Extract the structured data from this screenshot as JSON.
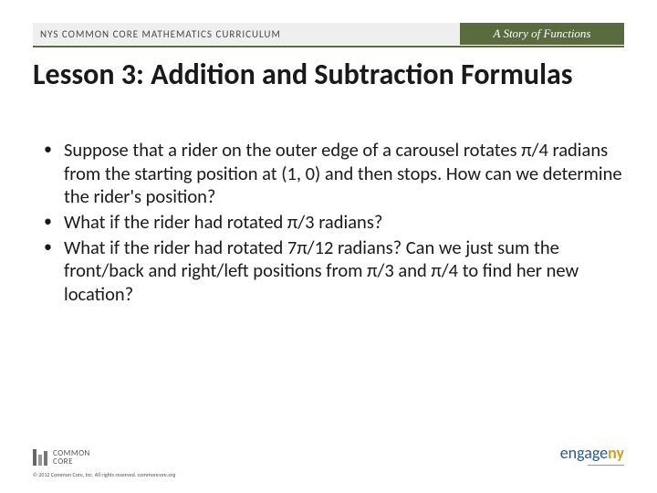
{
  "header": {
    "left": "NYS COMMON CORE MATHEMATICS CURRICULUM",
    "right": "A Story of Functions",
    "bg_left": "#efefef",
    "bg_right": "#5a6b3f",
    "border_color": "#5a6b3f"
  },
  "title": "Lesson 3:  Addition and Subtraction Formulas",
  "bullets": [
    "Suppose that a rider on the outer edge of a carousel rotates π/4 radians from the starting position at (1, 0) and then stops.  How can we determine the rider's position?",
    "What if the rider had rotated π/3 radians?",
    "What if the rider had rotated 7π/12 radians?  Can we just sum the front/back and right/left positions from π/3 and π/4 to find her new location?"
  ],
  "footer": {
    "cc_label_top": "COMMON",
    "cc_label_bottom": "CORE",
    "engage_prefix": "engage",
    "engage_suffix": "ny",
    "copyright": "© 2012 Common Core, Inc. All rights reserved. commoncore.org"
  },
  "style": {
    "page_bg": "#ffffff",
    "title_fontsize": 32,
    "body_fontsize": 20.5,
    "text_color": "#1a1a1a"
  }
}
